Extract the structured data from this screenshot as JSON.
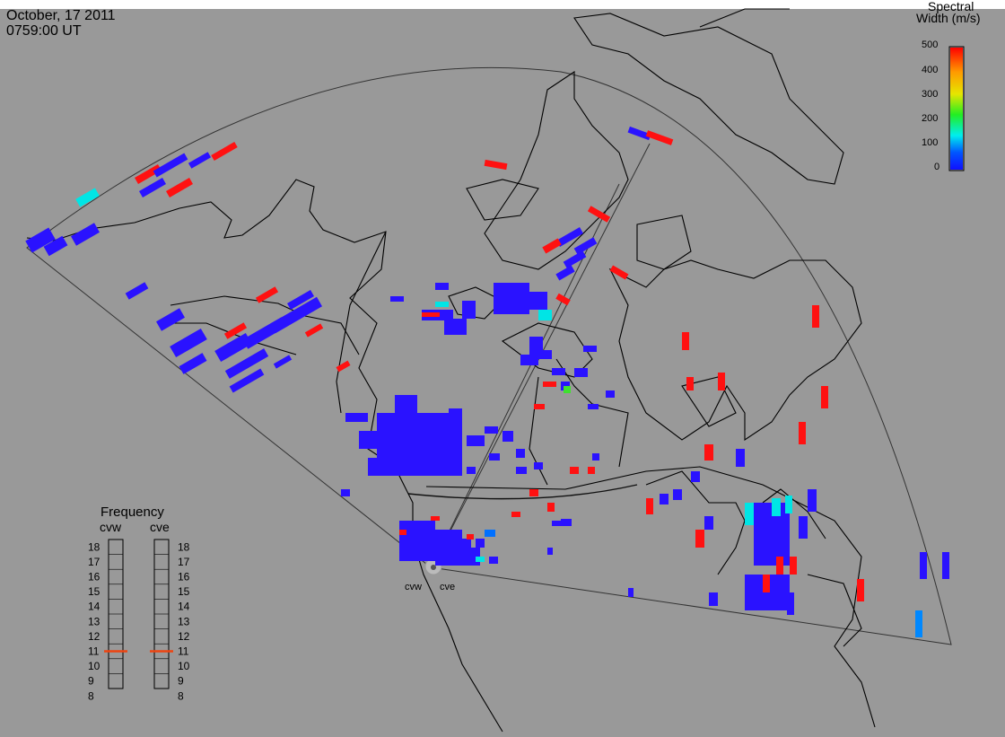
{
  "header": {
    "date": "October, 17 2011",
    "time": "0759:00 UT"
  },
  "colorbar": {
    "title_line1": "Spectral",
    "title_line2": "Width (m/s)",
    "ticks": [
      "500",
      "400",
      "300",
      "200",
      "100",
      "0"
    ],
    "colors": [
      "#ff0000",
      "#ff9a00",
      "#e6e600",
      "#22ee22",
      "#00eeee",
      "#0055ff",
      "#1010ff"
    ]
  },
  "frequency_panel": {
    "title": "Frequency",
    "radar_labels": [
      "cvw",
      "cve"
    ],
    "scale": [
      "18",
      "17",
      "16",
      "15",
      "14",
      "13",
      "12",
      "11",
      "10",
      "9",
      "8"
    ],
    "cvw_value": 11,
    "cve_value": 11,
    "marker_color": "#ee4411"
  },
  "radars": [
    {
      "label": "cvw"
    },
    {
      "label": "cve"
    }
  ],
  "colors": {
    "background": "#999999",
    "low_width": "#2a12ff",
    "high_width": "#ff1111",
    "mid_width": "#00e5e5"
  }
}
